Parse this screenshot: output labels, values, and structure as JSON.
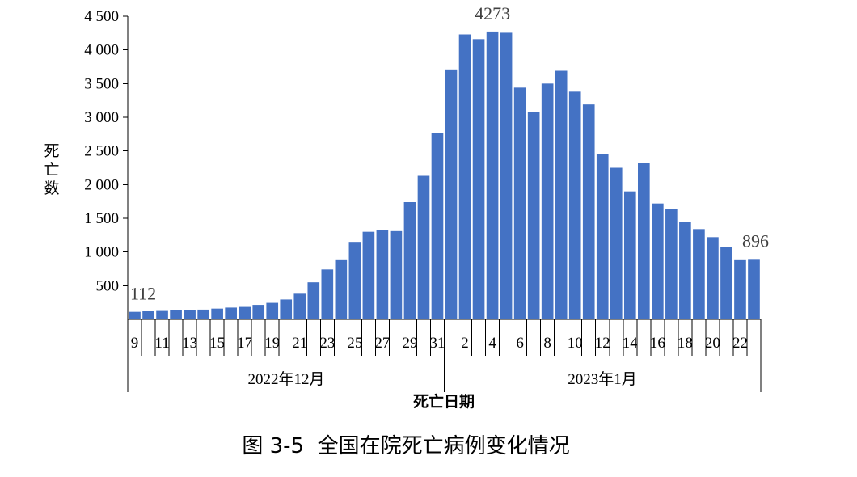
{
  "chart_data": {
    "type": "bar",
    "ylabel": "死亡数",
    "xlabel": "死亡日期",
    "ylim": [
      0,
      4500
    ],
    "yticks": [
      500,
      1000,
      1500,
      2000,
      2500,
      3000,
      3500,
      4000,
      4500
    ],
    "ytick_labels": [
      "500",
      "1 000",
      "1 500",
      "2 000",
      "2 500",
      "3 000",
      "3 500",
      "4 000",
      "4 500"
    ],
    "months": [
      "2022年12月",
      "2023年1月"
    ],
    "categories": [
      "9",
      "10",
      "11",
      "12",
      "13",
      "14",
      "15",
      "16",
      "17",
      "18",
      "19",
      "20",
      "21",
      "22",
      "23",
      "24",
      "25",
      "26",
      "27",
      "28",
      "29",
      "30",
      "31",
      "1",
      "2",
      "3",
      "4",
      "5",
      "6",
      "7",
      "8",
      "9",
      "10",
      "11",
      "12",
      "13",
      "14",
      "15",
      "16",
      "17",
      "18",
      "19",
      "20",
      "21",
      "22",
      "23"
    ],
    "x_tick_labels": [
      "9",
      "",
      "11",
      "",
      "13",
      "",
      "15",
      "",
      "17",
      "",
      "19",
      "",
      "21",
      "",
      "23",
      "",
      "25",
      "",
      "27",
      "",
      "29",
      "",
      "31",
      "",
      "2",
      "",
      "4",
      "",
      "6",
      "",
      "8",
      "",
      "10",
      "",
      "12",
      "",
      "14",
      "",
      "16",
      "",
      "18",
      "",
      "20",
      "",
      "22",
      ""
    ],
    "values": [
      112,
      120,
      125,
      135,
      140,
      145,
      160,
      175,
      185,
      215,
      245,
      295,
      380,
      550,
      740,
      890,
      1150,
      1300,
      1320,
      1310,
      1740,
      2130,
      2760,
      3710,
      4230,
      4160,
      4273,
      4255,
      3440,
      3080,
      3500,
      3690,
      3380,
      3190,
      2460,
      2250,
      1900,
      2320,
      1720,
      1640,
      1440,
      1340,
      1220,
      1080,
      890,
      896
    ],
    "data_labels": [
      {
        "index": 0,
        "text": "112"
      },
      {
        "index": 26,
        "text": "4273"
      },
      {
        "index": 45,
        "text": "896"
      }
    ]
  },
  "caption": "图 3-5  全国在院死亡病例变化情况"
}
